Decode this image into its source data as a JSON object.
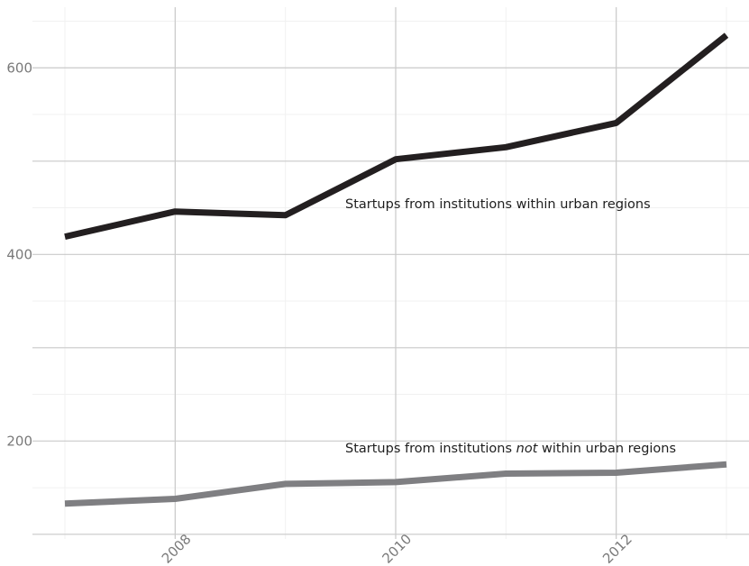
{
  "chart_data": {
    "type": "line",
    "title": "",
    "xlabel": "",
    "ylabel": "",
    "x": [
      2007,
      2008,
      2009,
      2010,
      2011,
      2012,
      2013
    ],
    "x_ticks": [
      2008,
      2010,
      2012
    ],
    "x_tick_labels": [
      "2008",
      "2010",
      "2012"
    ],
    "y_ticks": [
      200,
      400,
      600
    ],
    "y_tick_labels": [
      "200",
      "400",
      "600"
    ],
    "xlim": [
      2007,
      2013
    ],
    "ylim": [
      95,
      665
    ],
    "grid": true,
    "legend": "none",
    "series": [
      {
        "name": "Startups from institutions within urban regions",
        "values": [
          419,
          446,
          442,
          502,
          515,
          541,
          635
        ],
        "color": "#231f20"
      },
      {
        "name": "Startups from institutions not within urban regions",
        "values": [
          133,
          138,
          154,
          156,
          165,
          166,
          175
        ],
        "color": "#7f7f82"
      }
    ],
    "annotations": [
      {
        "text": "Startups from institutions within urban regions"
      },
      {
        "text_parts": [
          "Startups from institutions ",
          "not",
          " within urban regions"
        ]
      }
    ]
  }
}
